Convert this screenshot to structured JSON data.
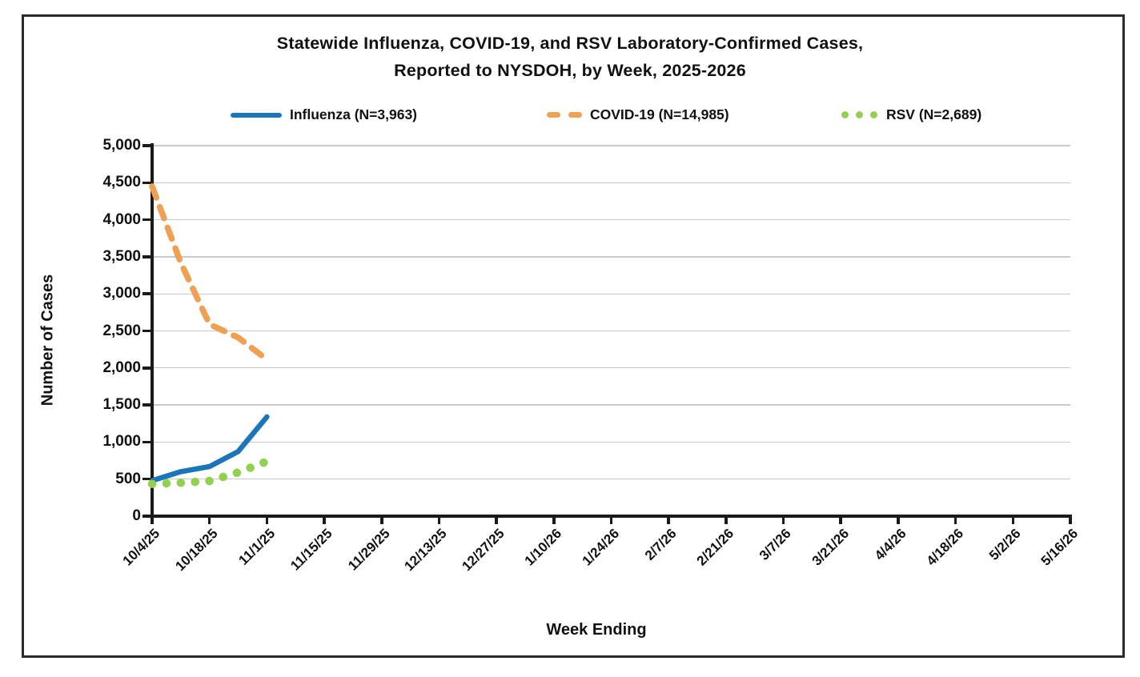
{
  "title": {
    "line1": "Statewide Influenza, COVID-19, and RSV Laboratory-Confirmed Cases,",
    "line2": "Reported to NYSDOH, by Week, 2025-2026"
  },
  "legend": [
    {
      "label": "Influenza (N=3,963)"
    },
    {
      "label": "COVID-19 (N=14,985)"
    },
    {
      "label": "RSV (N=2,689)"
    }
  ],
  "axes": {
    "y_title": "Number of Cases",
    "x_title": "Week Ending"
  },
  "colors": {
    "influenza": "#1b75b9",
    "covid": "#f0a052",
    "rsv": "#92d050",
    "gridline": "#c9c9c9",
    "axis": "#1a1a1a"
  },
  "chart_data": {
    "type": "line",
    "title": "Statewide Influenza, COVID-19, and RSV Laboratory-Confirmed Cases, Reported to NYSDOH, by Week, 2025-2026",
    "xlabel": "Week Ending",
    "ylabel": "Number of Cases",
    "ylim": [
      0,
      5000
    ],
    "y_tick_step": 500,
    "grid": "horizontal",
    "legend_position": "top",
    "x_tick_labels": [
      "10/4/25",
      "10/18/25",
      "11/1/25",
      "11/15/25",
      "11/29/25",
      "12/13/25",
      "12/27/25",
      "1/10/26",
      "1/24/26",
      "2/7/26",
      "2/21/26",
      "3/7/26",
      "3/21/26",
      "4/4/26",
      "4/18/26",
      "5/2/26",
      "5/16/26"
    ],
    "x": [
      "10/4/25",
      "10/11/25",
      "10/18/25",
      "10/25/25",
      "11/1/25"
    ],
    "series": [
      {
        "id": "influenza",
        "name": "Influenza (N=3,963)",
        "n_total": 3963,
        "color": "#1b75b9",
        "style": "solid",
        "values": [
          480,
          600,
          670,
          873,
          1340
        ]
      },
      {
        "id": "covid-19",
        "name": "COVID-19 (N=14,985)",
        "n_total": 14985,
        "color": "#f0a052",
        "style": "dashed",
        "values": [
          4450,
          3420,
          2590,
          2410,
          2115
        ]
      },
      {
        "id": "rsv",
        "name": "RSV (N=2,689)",
        "n_total": 2689,
        "color": "#92d050",
        "style": "dotted",
        "values": [
          435,
          450,
          475,
          590,
          739
        ]
      }
    ]
  }
}
